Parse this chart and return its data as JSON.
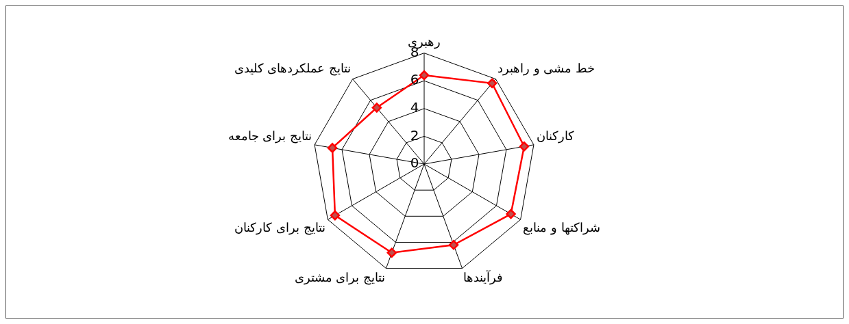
{
  "chart_data": {
    "type": "radar",
    "categories": [
      "رهبری",
      "خط مشی و راهبرد",
      "کارکنان",
      "شراکتها و منابع",
      "فرآیندها",
      "نتایج برای مشتری",
      "نتایج برای کارکنان",
      "نتایج برای جامعه",
      "نتایج عملکردهای کلیدی"
    ],
    "series": [
      {
        "color": "#ff0000",
        "values": [
          6.4,
          7.6,
          7.3,
          7.2,
          6.2,
          6.8,
          7.4,
          6.7,
          5.3
        ]
      }
    ],
    "ylim": [
      0,
      8
    ],
    "yticks": [
      0,
      2,
      4,
      6,
      8
    ],
    "grid": true,
    "legend": false,
    "marker": "diamond"
  }
}
